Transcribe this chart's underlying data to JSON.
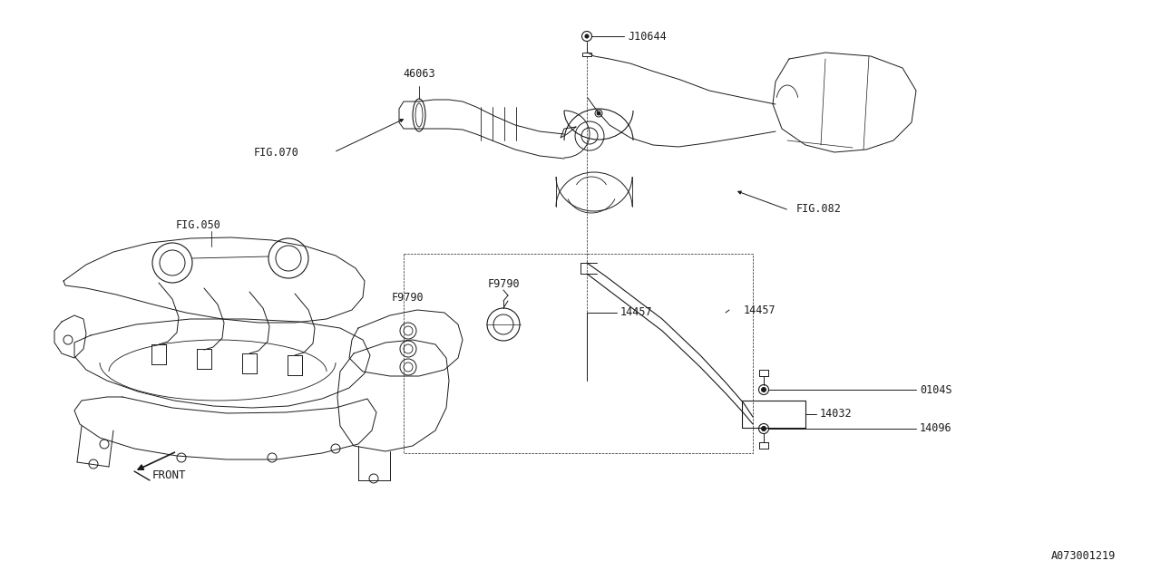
{
  "bg_color": "#ffffff",
  "line_color": "#1a1a1a",
  "fig_width": 12.8,
  "fig_height": 6.4,
  "dpi": 100,
  "diagram_id": "A073001219",
  "font_size": 8.5,
  "label_font": "monospace",
  "labels": {
    "J10644": [
      0.538,
      0.918,
      "left",
      "center"
    ],
    "46063": [
      0.322,
      0.752,
      "center",
      "bottom"
    ],
    "FIG.070": [
      0.202,
      0.652,
      "left",
      "center"
    ],
    "FIG.050": [
      0.182,
      0.545,
      "left",
      "center"
    ],
    "F9790": [
      0.435,
      0.438,
      "left",
      "center"
    ],
    "FIG.082": [
      0.718,
      0.592,
      "left",
      "center"
    ],
    "14457": [
      0.638,
      0.488,
      "left",
      "center"
    ],
    "0104S": [
      0.795,
      0.378,
      "left",
      "center"
    ],
    "14032": [
      0.838,
      0.332,
      "left",
      "center"
    ],
    "14096": [
      0.785,
      0.282,
      "left",
      "center"
    ]
  }
}
